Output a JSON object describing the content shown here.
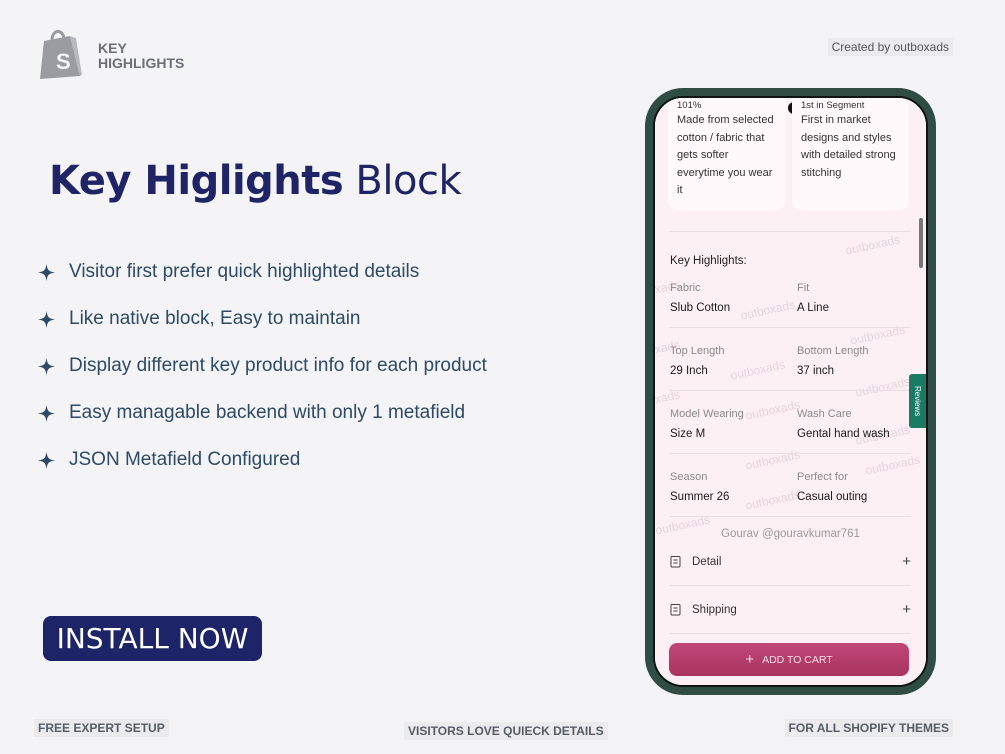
{
  "header": {
    "logo_text_1": "KEY",
    "logo_text_2": "HIGHLIGHTS",
    "created_by": "Created by outboxads"
  },
  "hero": {
    "title_bold": "Key Higlights",
    "title_rest": "Block",
    "bullets": [
      "Visitor first prefer quick highlighted details",
      "Like native block, Easy to maintain",
      "Display different key product info for each product",
      "Easy managable backend with only 1 metafield",
      "JSON Metafield Configured"
    ],
    "button": "INSTALL NOW"
  },
  "phone": {
    "cards": [
      {
        "tag": "101%",
        "text": "Made from selected cotton / fabric that gets softer everytime you wear it"
      },
      {
        "tag": "1st in Segment",
        "text": "First in market designs and styles with detailed strong stitching"
      }
    ],
    "section_label": "Key Highlights:",
    "fields": [
      {
        "label": "Fabric",
        "value": "Slub Cotton"
      },
      {
        "label": "Fit",
        "value": "A Line"
      },
      {
        "label": "Top Length",
        "value": "29 Inch"
      },
      {
        "label": "Bottom Length",
        "value": "37 inch"
      },
      {
        "label": "Model Wearing",
        "value": "Size M"
      },
      {
        "label": "Wash Care",
        "value": "Gental hand wash"
      },
      {
        "label": "Season",
        "value": "Summer 26"
      },
      {
        "label": "Perfect for",
        "value": "Casual outing"
      }
    ],
    "credit": "Gourav @gouravkumar761",
    "accordions": [
      "Detail",
      "Shipping"
    ],
    "cart_button": "ADD TO CART",
    "reviews_tab": "Reviews",
    "watermark": "outboxads"
  },
  "footer": {
    "left": "FREE EXPERT SETUP",
    "center": "VISITORS LOVE QUIECK DETAILS",
    "right": "FOR ALL SHOPIFY THEMES"
  }
}
